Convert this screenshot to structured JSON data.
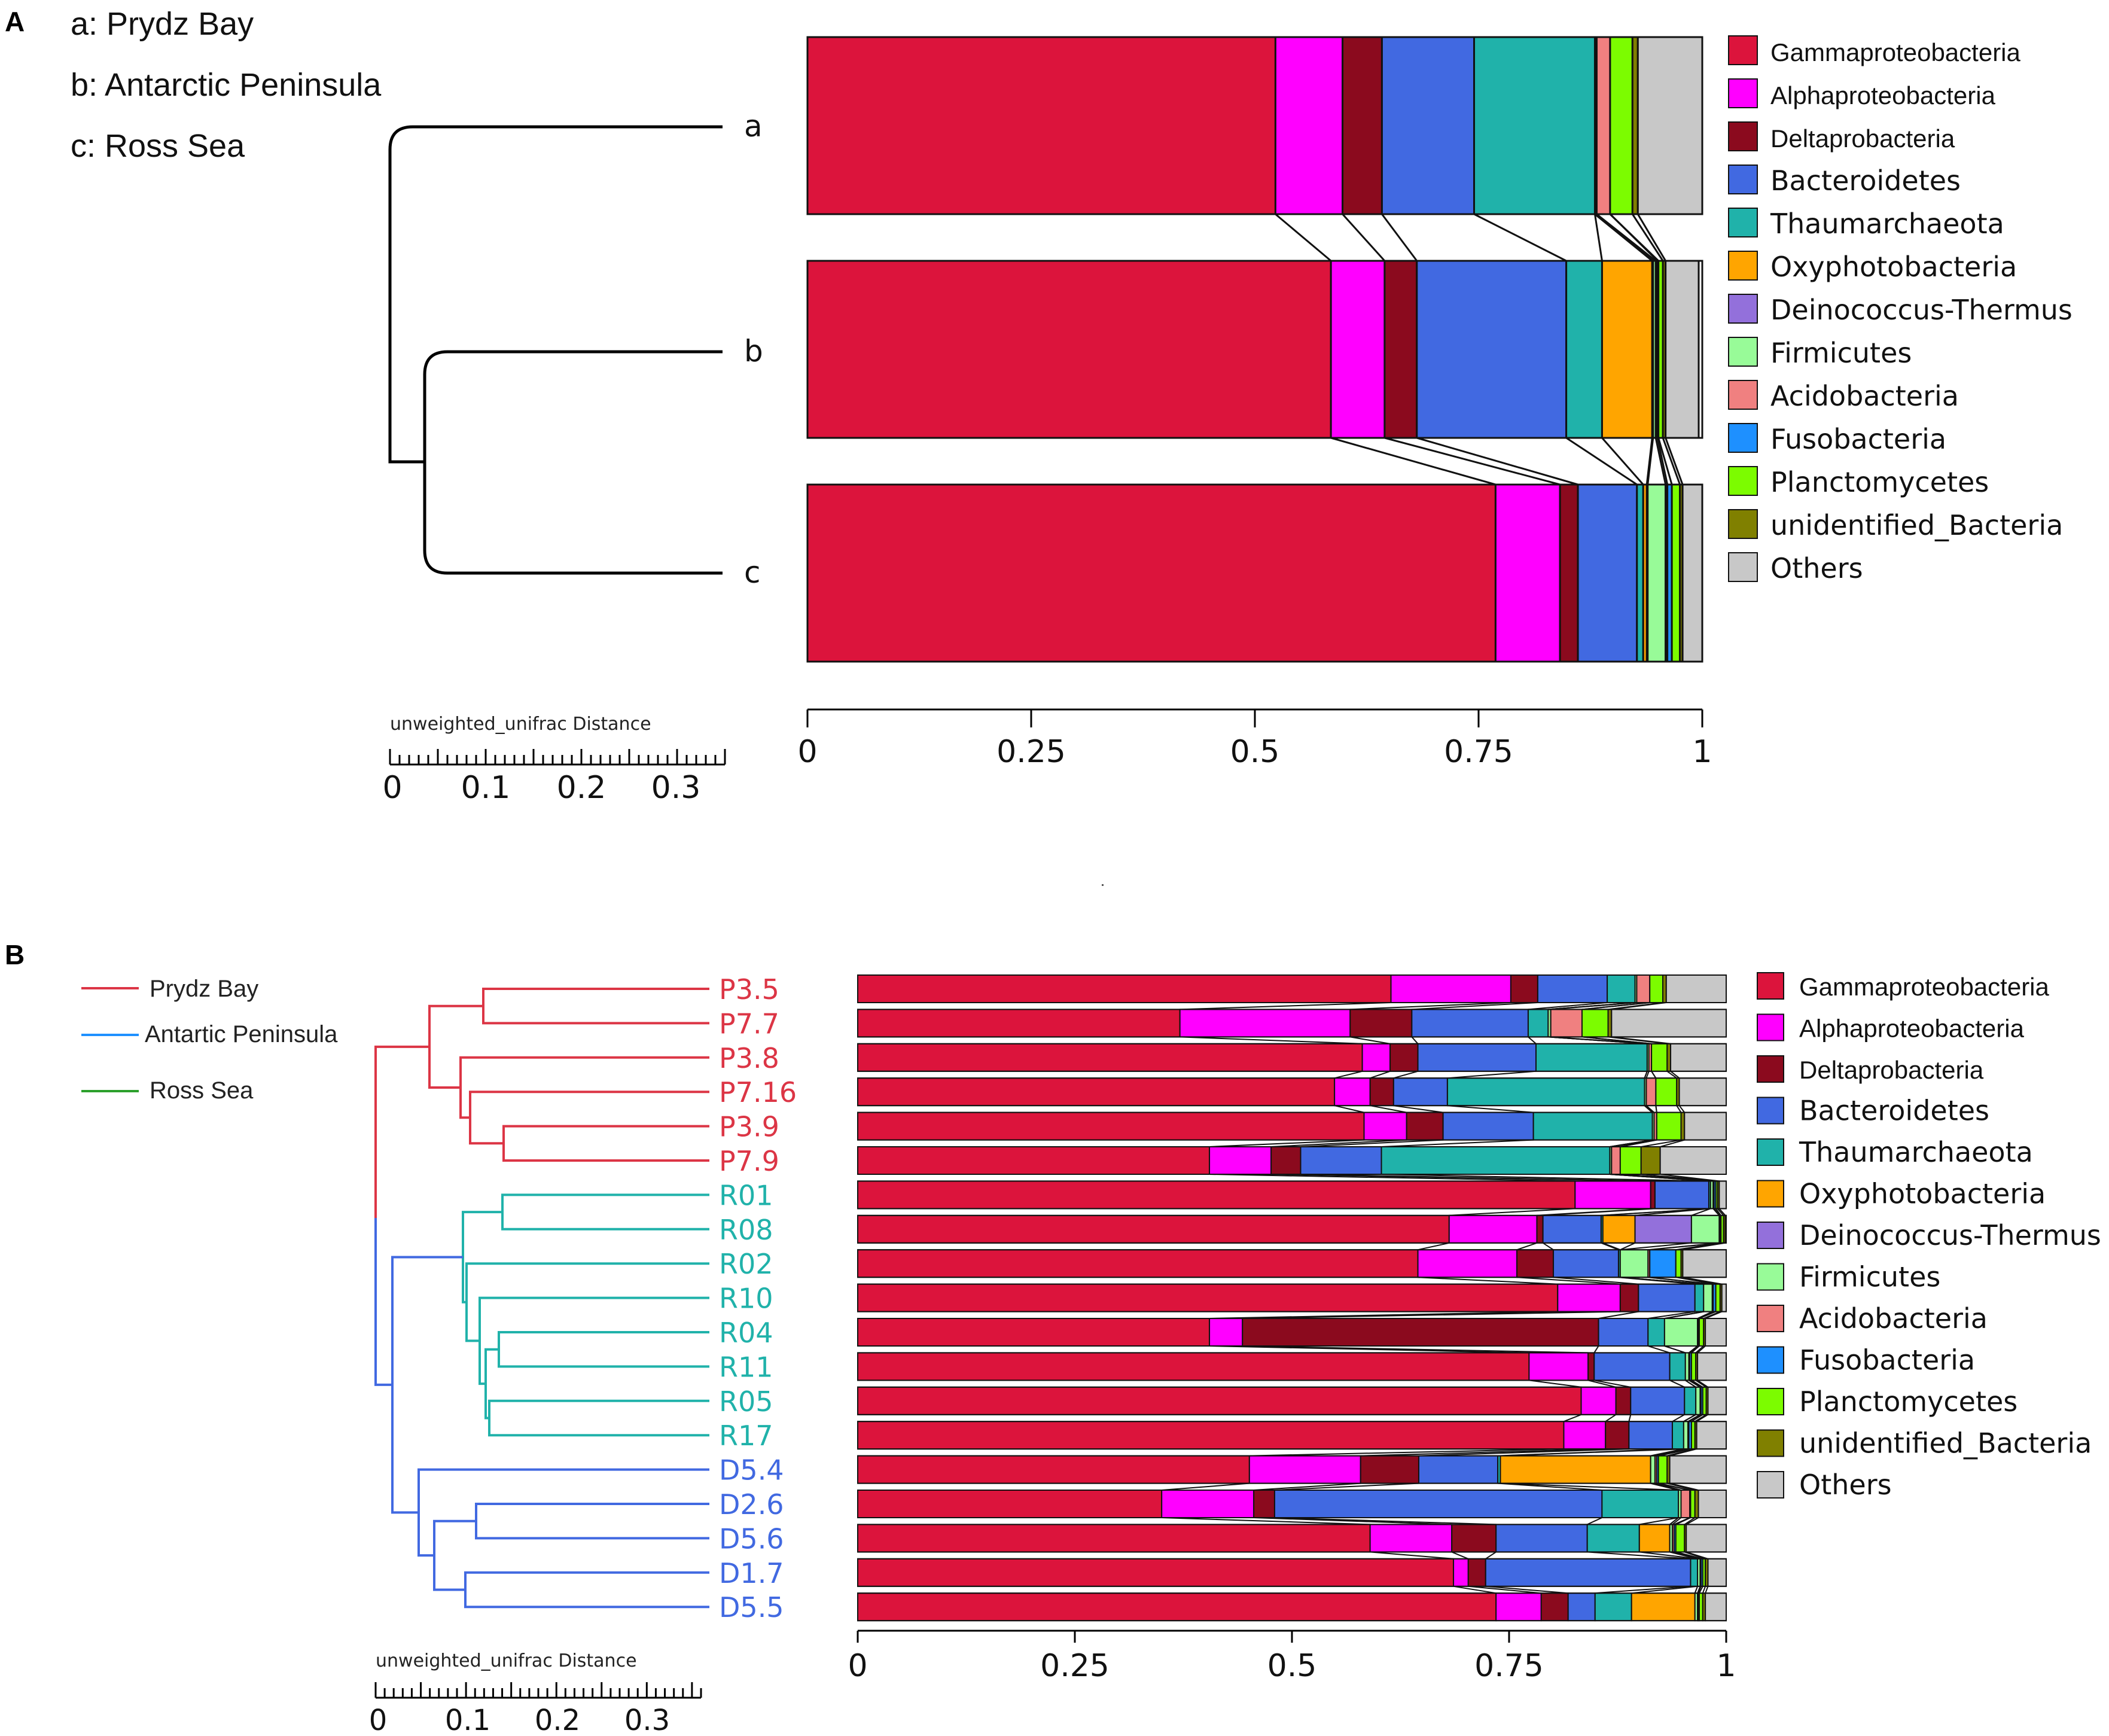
{
  "taxa": [
    "Gammaproteobacteria",
    "Alphaproteobacteria",
    "Deltaprobacteria",
    "Bacteroidetes",
    "Thaumarchaeota",
    "Oxyphotobacteria",
    "Deinococcus-Thermus",
    "Firmicutes",
    "Acidobacteria",
    "Fusobacteria",
    "Planctomycetes",
    "unidentified_Bacteria",
    "Others"
  ],
  "taxa_colors": [
    "#dc143c",
    "#ff00ff",
    "#8b0a1e",
    "#4169e1",
    "#20b2aa",
    "#ffa500",
    "#9370db",
    "#98fb98",
    "#f08080",
    "#1e90ff",
    "#7cfc00",
    "#808000",
    "#c8c8c8"
  ],
  "panel_a": {
    "letter": "A",
    "site_key": [
      "a: Prydz Bay",
      "b: Antarctic Peninsula",
      "c: Ross Sea"
    ],
    "leaves": [
      "a",
      "b",
      "c"
    ],
    "scale_title": "unweighted_unifrac Distance",
    "scale_ticks": [
      "0",
      "0.1",
      "0.2",
      "0.3"
    ],
    "legend": [
      "Gammaproteobacteria",
      "Alphaproteobacteria",
      "Deltaprobacteria",
      "Bacteroidetes",
      "Thaumarchaeota",
      "Oxyphotobacteria",
      "Deinococcus-Thermus",
      "Firmicutes",
      "Acidobacteria",
      "Fusobacteria",
      "Planctomycetes",
      "unidentified_Bacteria",
      "Others"
    ]
  },
  "panel_b": {
    "letter": "B",
    "region_legend": [
      {
        "name": "Prydz Bay",
        "color": "#dc3545"
      },
      {
        "name": "Antartic Peninsula",
        "color": "#1e90ff"
      },
      {
        "name": "Ross Sea",
        "color": "#2ca02c"
      }
    ],
    "scale_title": "unweighted_unifrac Distance",
    "scale_ticks": [
      "0",
      "0.1",
      "0.2",
      "0.3"
    ],
    "legend": [
      "Gammaproteobacteria",
      "Alphaproteobacteria",
      "Deltaprobacteria",
      "Bacteroidetes",
      "Thaumarchaeota",
      "Oxyphotobacteria",
      "Deinococcus-Thermus",
      "Firmicutes",
      "Acidobacteria",
      "Fusobacteria",
      "Planctomycetes",
      "unidentified_Bacteria",
      "Others"
    ]
  },
  "chart_data": [
    {
      "type": "bar",
      "orientation": "horizontal",
      "stacked": true,
      "title": "",
      "xlim": [
        0,
        1
      ],
      "xticks": [
        "0",
        "0.25",
        "0.5",
        "0.75",
        "1"
      ],
      "categories": [
        "a",
        "b",
        "c"
      ],
      "series": [
        {
          "name": "Gammaproteobacteria",
          "values": [
            0.523,
            0.585,
            0.769
          ]
        },
        {
          "name": "Alphaproteobacteria",
          "values": [
            0.075,
            0.06,
            0.072
          ]
        },
        {
          "name": "Deltaprobacteria",
          "values": [
            0.044,
            0.036,
            0.02
          ]
        },
        {
          "name": "Bacteroidetes",
          "values": [
            0.103,
            0.167,
            0.066
          ]
        },
        {
          "name": "Thaumarchaeota",
          "values": [
            0.135,
            0.04,
            0.007
          ]
        },
        {
          "name": "Oxyphotobacteria",
          "values": [
            0.0,
            0.056,
            0.004
          ]
        },
        {
          "name": "Deinococcus-Thermus",
          "values": [
            0.0,
            0.001,
            0.001
          ]
        },
        {
          "name": "Firmicutes",
          "values": [
            0.002,
            0.003,
            0.02
          ]
        },
        {
          "name": "Acidobacteria",
          "values": [
            0.015,
            0.002,
            0.002
          ]
        },
        {
          "name": "Fusobacteria",
          "values": [
            0.0,
            0.001,
            0.005
          ]
        },
        {
          "name": "Planctomycetes",
          "values": [
            0.025,
            0.005,
            0.009
          ]
        },
        {
          "name": "unidentified_Bacteria",
          "values": [
            0.006,
            0.003,
            0.003
          ]
        },
        {
          "name": "Others",
          "values": [
            0.072,
            0.037,
            0.022
          ]
        }
      ]
    },
    {
      "type": "bar",
      "orientation": "horizontal",
      "stacked": true,
      "title": "",
      "xlim": [
        0,
        1
      ],
      "xticks": [
        "0",
        "0.25",
        "0.5",
        "0.75",
        "1"
      ],
      "categories": [
        "P3.5",
        "P7.7",
        "P3.8",
        "P7.16",
        "P3.9",
        "P7.9",
        "R01",
        "R08",
        "R02",
        "R10",
        "R04",
        "R11",
        "R05",
        "R17",
        "D5.4",
        "D2.6",
        "D5.6",
        "D1.7",
        "D5.5"
      ],
      "category_groups": [
        "P",
        "P",
        "P",
        "P",
        "P",
        "P",
        "R",
        "R",
        "R",
        "R",
        "R",
        "R",
        "R",
        "R",
        "D",
        "D",
        "D",
        "D",
        "D"
      ],
      "group_colors": {
        "P": "#dc3545",
        "R": "#20b2aa",
        "D": "#4169e1"
      },
      "series": [
        {
          "name": "Gammaproteobacteria",
          "values": [
            0.614,
            0.371,
            0.581,
            0.549,
            0.583,
            0.405,
            0.826,
            0.681,
            0.645,
            0.806,
            0.405,
            0.773,
            0.833,
            0.813,
            0.451,
            0.35,
            0.59,
            0.686,
            0.735
          ]
        },
        {
          "name": "Alphaproteobacteria",
          "values": [
            0.138,
            0.196,
            0.032,
            0.041,
            0.049,
            0.071,
            0.087,
            0.101,
            0.114,
            0.072,
            0.038,
            0.068,
            0.04,
            0.048,
            0.128,
            0.106,
            0.094,
            0.017,
            0.052
          ]
        },
        {
          "name": "Deltaprobacteria",
          "values": [
            0.031,
            0.071,
            0.032,
            0.027,
            0.042,
            0.034,
            0.005,
            0.007,
            0.042,
            0.021,
            0.41,
            0.007,
            0.017,
            0.027,
            0.067,
            0.024,
            0.051,
            0.02,
            0.031
          ]
        },
        {
          "name": "Bacteroidetes",
          "values": [
            0.08,
            0.134,
            0.136,
            0.062,
            0.104,
            0.093,
            0.062,
            0.067,
            0.075,
            0.065,
            0.057,
            0.087,
            0.062,
            0.05,
            0.091,
            0.377,
            0.105,
            0.236,
            0.031
          ]
        },
        {
          "name": "Thaumarchaeota",
          "values": [
            0.032,
            0.023,
            0.128,
            0.227,
            0.137,
            0.263,
            0.002,
            0.002,
            0.002,
            0.01,
            0.019,
            0.018,
            0.013,
            0.013,
            0.003,
            0.088,
            0.06,
            0.008,
            0.042
          ]
        },
        {
          "name": "Oxyphotobacteria",
          "values": [
            0.0,
            0.0,
            0.0,
            0.0,
            0.0,
            0.0,
            0.0,
            0.037,
            0.0,
            0.0,
            0.0,
            0.0,
            0.0,
            0.0,
            0.173,
            0.0,
            0.035,
            0.0,
            0.073
          ]
        },
        {
          "name": "Deinococcus-Thermus",
          "values": [
            0.0,
            0.0,
            0.0,
            0.0,
            0.0,
            0.0,
            0.0,
            0.065,
            0.0,
            0.0,
            0.0,
            0.0,
            0.0,
            0.0,
            0.0,
            0.0,
            0.0,
            0.0,
            0.0
          ]
        },
        {
          "name": "Firmicutes",
          "values": [
            0.002,
            0.003,
            0.002,
            0.002,
            0.002,
            0.002,
            0.003,
            0.032,
            0.032,
            0.01,
            0.038,
            0.004,
            0.005,
            0.005,
            0.005,
            0.003,
            0.003,
            0.003,
            0.003
          ]
        },
        {
          "name": "Acidobacteria",
          "values": [
            0.015,
            0.036,
            0.003,
            0.011,
            0.003,
            0.01,
            0.001,
            0.001,
            0.002,
            0.001,
            0.001,
            0.001,
            0.001,
            0.001,
            0.002,
            0.01,
            0.002,
            0.001,
            0.001
          ]
        },
        {
          "name": "Fusobacteria",
          "values": [
            0.0,
            0.0,
            0.0,
            0.0,
            0.0,
            0.0,
            0.002,
            0.001,
            0.03,
            0.003,
            0.001,
            0.002,
            0.002,
            0.003,
            0.002,
            0.001,
            0.002,
            0.002,
            0.001
          ]
        },
        {
          "name": "Planctomycetes",
          "values": [
            0.015,
            0.03,
            0.018,
            0.024,
            0.028,
            0.024,
            0.002,
            0.003,
            0.006,
            0.005,
            0.005,
            0.005,
            0.004,
            0.004,
            0.01,
            0.005,
            0.01,
            0.003,
            0.004
          ]
        },
        {
          "name": "unidentified_Bacteria",
          "values": [
            0.004,
            0.004,
            0.004,
            0.003,
            0.004,
            0.022,
            0.002,
            0.002,
            0.002,
            0.002,
            0.002,
            0.002,
            0.002,
            0.002,
            0.003,
            0.004,
            0.002,
            0.003,
            0.003
          ]
        },
        {
          "name": "Others",
          "values": [
            0.069,
            0.132,
            0.064,
            0.054,
            0.048,
            0.076,
            0.008,
            0.001,
            0.05,
            0.005,
            0.024,
            0.033,
            0.021,
            0.034,
            0.065,
            0.032,
            0.046,
            0.021,
            0.024
          ]
        }
      ]
    }
  ]
}
